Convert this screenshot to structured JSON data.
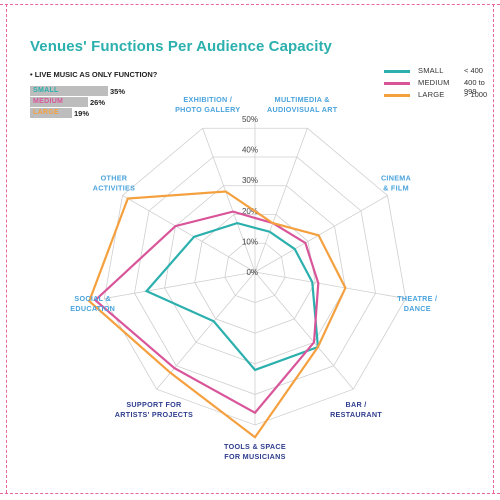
{
  "title": "Venues' Functions Per Audience Capacity",
  "live_music_question": {
    "label": "• LIVE MUSIC AS ONLY FUNCTION?",
    "rows": [
      {
        "name": "SMALL",
        "value": 35,
        "value_label": "35%"
      },
      {
        "name": "MEDIUM",
        "value": 26,
        "value_label": "26%"
      },
      {
        "name": "LARGE",
        "value": 19,
        "value_label": "19%"
      }
    ]
  },
  "colors": {
    "small": "#2bb0ad",
    "medium": "#d9559a",
    "large": "#f5a03f",
    "axis_label": "#4aa3dc",
    "axis_label_dark": "#2f3d8f",
    "grid": "#cfcfcf",
    "frame": "#e8669e"
  },
  "legend": [
    {
      "key": "small",
      "name": "SMALL",
      "range": "< 400"
    },
    {
      "key": "medium",
      "name": "MEDIUM",
      "range": "400 to 999"
    },
    {
      "key": "large",
      "name": "LARGE",
      "range": "> 1000"
    }
  ],
  "chart_data": {
    "type": "radar",
    "title": "Venues' Functions Per Audience Capacity",
    "rmax": 50,
    "ticks": [
      0,
      10,
      20,
      30,
      40,
      50
    ],
    "tick_labels": [
      "0%",
      "10%",
      "20%",
      "30%",
      "40%",
      "50%"
    ],
    "grid": true,
    "legend_position": "top-right",
    "categories": [
      [
        "MULTIMEDIA &",
        "AUDIOVISUAL ART"
      ],
      [
        "CINEMA",
        "& FILM"
      ],
      [
        "THEATRE /",
        "DANCE"
      ],
      [
        "BAR /",
        "RESTAURANT"
      ],
      [
        "TOOLS & SPACE",
        "FOR MUSICIANS"
      ],
      [
        "SUPPORT FOR",
        "ARTISTS' PROJECTS"
      ],
      [
        "SOCIAL &",
        "EDUCATION"
      ],
      [
        "OTHER",
        "ACTIVITIES"
      ],
      [
        "EXHIBITION /",
        "PHOTO GALLERY"
      ]
    ],
    "series": [
      {
        "name": "SMALL",
        "key": "small",
        "values": [
          14,
          15,
          19,
          32,
          32,
          21,
          36,
          23,
          17
        ]
      },
      {
        "name": "MEDIUM",
        "key": "medium",
        "values": [
          17,
          19,
          21,
          30,
          46,
          41,
          53,
          30,
          21
        ]
      },
      {
        "name": "LARGE",
        "key": "large",
        "values": [
          17,
          24,
          30,
          32,
          54,
          43,
          55,
          48,
          28
        ]
      }
    ]
  }
}
